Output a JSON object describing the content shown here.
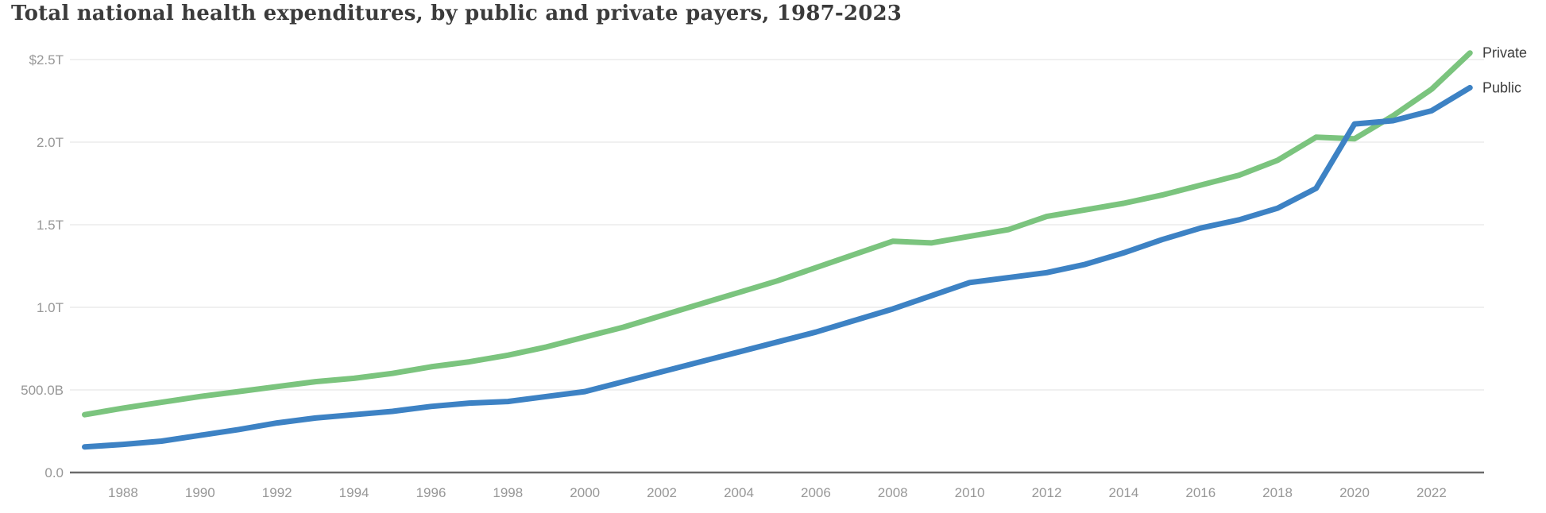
{
  "chart_data": {
    "type": "line",
    "title": "Total national health expenditures, by public and private payers, 1987-2023",
    "x": [
      1987,
      1988,
      1989,
      1990,
      1991,
      1992,
      1993,
      1994,
      1995,
      1996,
      1997,
      1998,
      1999,
      2000,
      2001,
      2002,
      2003,
      2004,
      2005,
      2006,
      2007,
      2008,
      2009,
      2010,
      2011,
      2012,
      2013,
      2014,
      2015,
      2016,
      2017,
      2018,
      2019,
      2020,
      2021,
      2022,
      2023
    ],
    "x_unit": "year",
    "y_unit": "USD",
    "series": [
      {
        "name": "Private",
        "color": "#7bc47e",
        "values_trillions": [
          0.35,
          0.39,
          0.425,
          0.46,
          0.49,
          0.52,
          0.55,
          0.57,
          0.6,
          0.64,
          0.67,
          0.71,
          0.76,
          0.82,
          0.88,
          0.95,
          1.02,
          1.09,
          1.16,
          1.24,
          1.32,
          1.4,
          1.39,
          1.43,
          1.47,
          1.55,
          1.59,
          1.63,
          1.68,
          1.74,
          1.8,
          1.89,
          2.03,
          2.02,
          2.16,
          2.32,
          2.54
        ]
      },
      {
        "name": "Public",
        "color": "#3d82c4",
        "values_trillions": [
          0.155,
          0.17,
          0.19,
          0.225,
          0.26,
          0.3,
          0.33,
          0.35,
          0.37,
          0.4,
          0.42,
          0.43,
          0.46,
          0.49,
          0.55,
          0.61,
          0.67,
          0.73,
          0.79,
          0.85,
          0.92,
          0.99,
          1.07,
          1.15,
          1.18,
          1.21,
          1.26,
          1.33,
          1.41,
          1.48,
          1.53,
          1.6,
          1.72,
          2.11,
          2.13,
          2.19,
          2.33
        ]
      }
    ],
    "y_ticks": [
      {
        "value": 2.5,
        "label": "$2.5T"
      },
      {
        "value": 2.0,
        "label": "2.0T"
      },
      {
        "value": 1.5,
        "label": "1.5T"
      },
      {
        "value": 1.0,
        "label": "1.0T"
      },
      {
        "value": 0.5,
        "label": "500.0B"
      },
      {
        "value": 0.0,
        "label": "0.0"
      }
    ],
    "x_tick_years": [
      1988,
      1990,
      1992,
      1994,
      1996,
      1998,
      2000,
      2002,
      2004,
      2006,
      2008,
      2010,
      2012,
      2014,
      2016,
      2018,
      2020,
      2022
    ],
    "xlim": [
      1987,
      2023
    ],
    "ylim": [
      0,
      2.6
    ],
    "grid": true,
    "grid_color": "#ececec",
    "axis_line_color": "#6b6b6b",
    "tick_label_color": "#979797",
    "legend_text_color": "#3c3c3c",
    "legend_position": "right-of-line-ends"
  }
}
